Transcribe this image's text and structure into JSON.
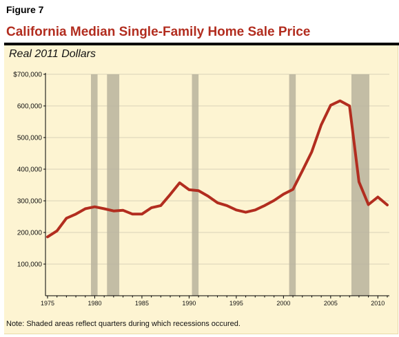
{
  "figure_label": "Figure 7",
  "title": "California Median Single-Family Home Sale Price",
  "subtitle": "Real 2011 Dollars",
  "note": "Note: Shaded areas reflect quarters during which recessions occured.",
  "colors": {
    "title": "#b22d1f",
    "line": "#b22d1f",
    "panel_background": "#fdf4d2",
    "recession_band": "#b8b39e",
    "gridline": "#d9d2b8"
  },
  "chart_data": {
    "type": "line",
    "title": "California Median Single-Family Home Sale Price",
    "subtitle": "Real 2011 Dollars",
    "xlabel": "",
    "ylabel": "",
    "xlim": [
      1975,
      2011
    ],
    "ylim": [
      0,
      700000
    ],
    "grid": true,
    "legend": "none",
    "x_ticks": [
      1975,
      1980,
      1985,
      1990,
      1995,
      2000,
      2005,
      2010
    ],
    "y_ticks": [
      100000,
      200000,
      300000,
      400000,
      500000,
      600000,
      700000
    ],
    "y_tick_labels": [
      "100,000",
      "200,000",
      "300,000",
      "400,000",
      "500,000",
      "600,000",
      "$700,000"
    ],
    "recessions": [
      {
        "start": 1979.6,
        "end": 1980.3
      },
      {
        "start": 1981.3,
        "end": 1982.6
      },
      {
        "start": 1990.3,
        "end": 1991.0
      },
      {
        "start": 2000.6,
        "end": 2001.3
      },
      {
        "start": 2007.2,
        "end": 2009.1
      }
    ],
    "series": [
      {
        "x": [
          1975,
          1976,
          1977,
          1978,
          1979,
          1980,
          1981,
          1982,
          1983,
          1984,
          1985,
          1986,
          1987,
          1988,
          1989,
          1990,
          1991,
          1992,
          1993,
          1994,
          1995,
          1996,
          1997,
          1998,
          1999,
          2000,
          2001,
          2002,
          2003,
          2004,
          2005,
          2006,
          2007,
          2008,
          2009,
          2010,
          2011
        ],
        "values": [
          186000,
          205000,
          245000,
          258000,
          275000,
          281000,
          275000,
          268000,
          270000,
          258000,
          258000,
          278000,
          285000,
          320000,
          357000,
          335000,
          332000,
          315000,
          294000,
          285000,
          271000,
          264000,
          271000,
          285000,
          301000,
          321000,
          336000,
          395000,
          455000,
          540000,
          602000,
          616000,
          600000,
          360000,
          288000,
          312000,
          287000
        ]
      }
    ]
  }
}
